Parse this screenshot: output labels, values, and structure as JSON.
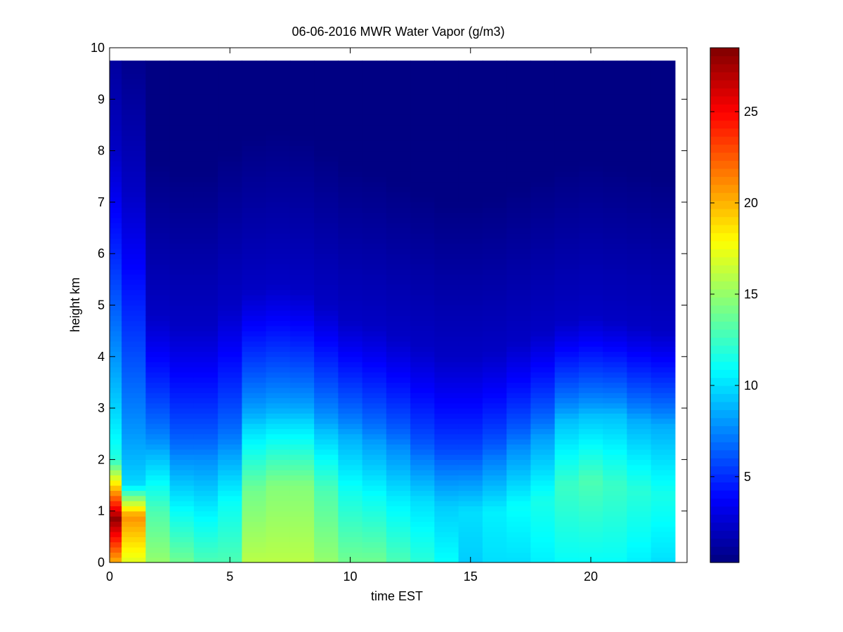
{
  "chart_data": {
    "type": "heatmap",
    "title": "06-06-2016 MWR Water Vapor (g/m3)",
    "xlabel": "time EST",
    "ylabel": "height km",
    "xlim": [
      0,
      24
    ],
    "ylim": [
      0,
      10
    ],
    "x_ticks": [
      0,
      5,
      10,
      15,
      20
    ],
    "y_ticks": [
      0,
      1,
      2,
      3,
      4,
      5,
      6,
      7,
      8,
      9,
      10
    ],
    "colorbar": {
      "colormap": "jet",
      "range": [
        0.3,
        28.5
      ],
      "ticks": [
        5,
        10,
        15,
        20,
        25
      ]
    },
    "grid": false,
    "data_extent": {
      "x": [
        0,
        23.5
      ],
      "y": [
        0,
        9.75
      ]
    },
    "time_centers": [
      0,
      1,
      2,
      3,
      4,
      5,
      6,
      7,
      8,
      9,
      10,
      11,
      12,
      13,
      14,
      15,
      16,
      17,
      18,
      19,
      20,
      21,
      22,
      23
    ],
    "profiles": [
      {
        "t": 0,
        "surface": 20,
        "peak": 28,
        "peak_h": 0.85,
        "low_top": 2.0,
        "mid": 12,
        "top_h": 8.0
      },
      {
        "t": 1,
        "surface": 17,
        "peak": 21,
        "peak_h": 0.9,
        "low_top": 1.5,
        "mid": 10,
        "top_h": 7.2
      },
      {
        "t": 2,
        "surface": 15,
        "peak": 13,
        "peak_h": 1.0,
        "low_top": 2.2,
        "mid": 8.5,
        "top_h": 4.8
      },
      {
        "t": 3,
        "surface": 14,
        "peak": 11,
        "peak_h": 1.0,
        "low_top": 2.1,
        "mid": 7.5,
        "top_h": 4.6
      },
      {
        "t": 4,
        "surface": 13,
        "peak": 10.5,
        "peak_h": 1.0,
        "low_top": 2.1,
        "mid": 7.5,
        "top_h": 4.6
      },
      {
        "t": 5,
        "surface": 13,
        "peak": 11,
        "peak_h": 1.2,
        "low_top": 2.2,
        "mid": 8,
        "top_h": 5.0
      },
      {
        "t": 6,
        "surface": 16,
        "peak": 14,
        "peak_h": 1.4,
        "low_top": 2.7,
        "mid": 9.5,
        "top_h": 5.3
      },
      {
        "t": 7,
        "surface": 16,
        "peak": 14.5,
        "peak_h": 1.5,
        "low_top": 2.8,
        "mid": 9.5,
        "top_h": 5.4
      },
      {
        "t": 8,
        "surface": 16,
        "peak": 14.5,
        "peak_h": 1.5,
        "low_top": 2.8,
        "mid": 9.5,
        "top_h": 5.3
      },
      {
        "t": 9,
        "surface": 15,
        "peak": 13,
        "peak_h": 1.4,
        "low_top": 2.6,
        "mid": 9,
        "top_h": 5.0
      },
      {
        "t": 10,
        "surface": 14,
        "peak": 11.5,
        "peak_h": 1.3,
        "low_top": 2.5,
        "mid": 8.5,
        "top_h": 4.7
      },
      {
        "t": 11,
        "surface": 14,
        "peak": 11,
        "peak_h": 1.3,
        "low_top": 2.4,
        "mid": 8,
        "top_h": 4.6
      },
      {
        "t": 12,
        "surface": 13,
        "peak": 10.5,
        "peak_h": 1.2,
        "low_top": 2.3,
        "mid": 7.5,
        "top_h": 4.4
      },
      {
        "t": 13,
        "surface": 12,
        "peak": 10,
        "peak_h": 1.2,
        "low_top": 2.1,
        "mid": 7,
        "top_h": 4.2
      },
      {
        "t": 14,
        "surface": 11,
        "peak": 9.5,
        "peak_h": 1.1,
        "low_top": 2.0,
        "mid": 6.5,
        "top_h": 4.0
      },
      {
        "t": 15,
        "surface": 9.5,
        "peak": 10,
        "peak_h": 1.0,
        "low_top": 2.0,
        "mid": 6.5,
        "top_h": 4.0
      },
      {
        "t": 16,
        "surface": 10,
        "peak": 10.5,
        "peak_h": 1.0,
        "low_top": 2.1,
        "mid": 7,
        "top_h": 4.1
      },
      {
        "t": 17,
        "surface": 10,
        "peak": 11,
        "peak_h": 1.1,
        "low_top": 2.3,
        "mid": 7.5,
        "top_h": 4.3
      },
      {
        "t": 18,
        "surface": 10.5,
        "peak": 11.5,
        "peak_h": 1.2,
        "low_top": 2.5,
        "mid": 8,
        "top_h": 4.5
      },
      {
        "t": 19,
        "surface": 11,
        "peak": 12.5,
        "peak_h": 1.5,
        "low_top": 2.8,
        "mid": 9,
        "top_h": 4.7
      },
      {
        "t": 20,
        "surface": 11,
        "peak": 13,
        "peak_h": 1.6,
        "low_top": 2.9,
        "mid": 9,
        "top_h": 4.8
      },
      {
        "t": 21,
        "surface": 11,
        "peak": 12.5,
        "peak_h": 1.5,
        "low_top": 2.9,
        "mid": 9,
        "top_h": 4.7
      },
      {
        "t": 22,
        "surface": 10.5,
        "peak": 12,
        "peak_h": 1.4,
        "low_top": 2.8,
        "mid": 8.5,
        "top_h": 4.6
      },
      {
        "t": 23,
        "surface": 10,
        "peak": 11.5,
        "peak_h": 1.3,
        "low_top": 2.7,
        "mid": 8.5,
        "top_h": 4.5
      }
    ]
  }
}
